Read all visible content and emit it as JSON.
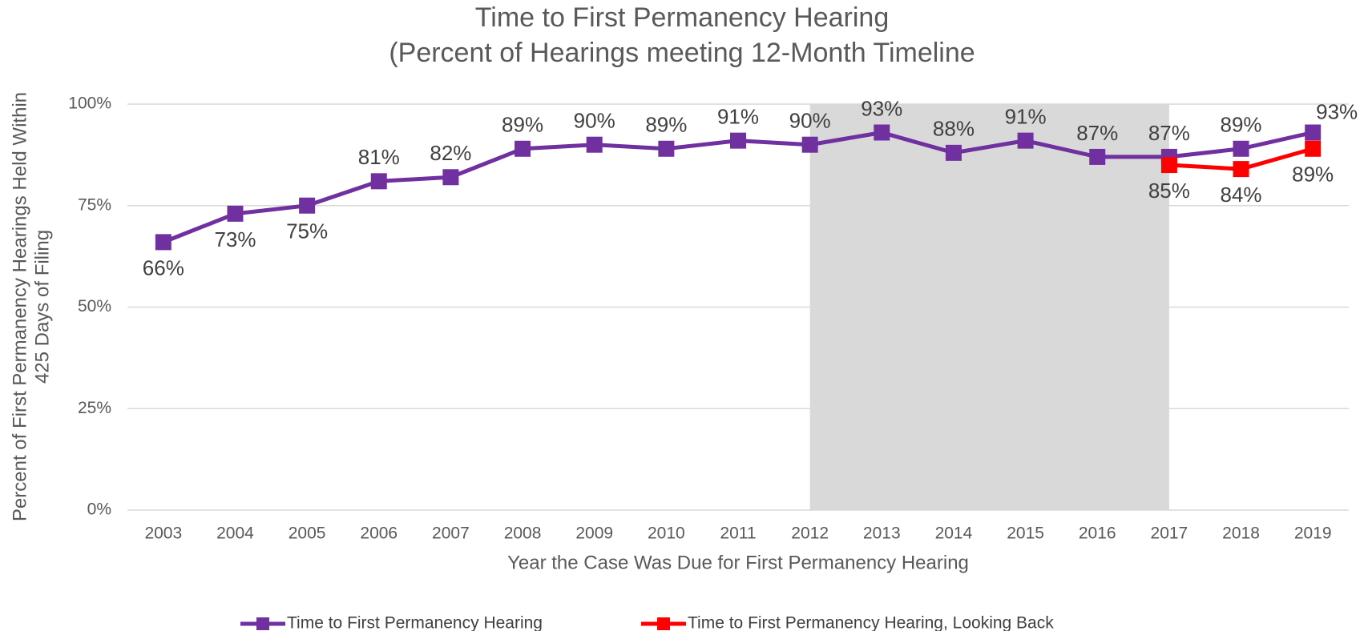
{
  "chart_data": {
    "type": "line",
    "title": "Time to First Permanency Hearing",
    "subtitle": "(Percent of Hearings meeting 12-Month Timeline",
    "x_label": "Year the Case Was Due for First Permanency Hearing",
    "y_label": [
      "Percent of First Permanency Hearings Held Within",
      "425 Days of Filing"
    ],
    "categories": [
      "2003",
      "2004",
      "2005",
      "2006",
      "2007",
      "2008",
      "2009",
      "2010",
      "2011",
      "2012",
      "2013",
      "2014",
      "2015",
      "2016",
      "2017",
      "2018",
      "2019"
    ],
    "highlight_range": [
      "2012",
      "2017"
    ],
    "series": [
      {
        "name": "Time to First Permanency Hearing",
        "color": "#7030a0",
        "values": [
          66,
          73,
          75,
          81,
          82,
          89,
          90,
          89,
          91,
          90,
          93,
          88,
          91,
          87,
          87,
          89,
          93
        ],
        "value_labels": [
          "66%",
          "73%",
          "75%",
          "81%",
          "82%",
          "89%",
          "90%",
          "89%",
          "91%",
          "90%",
          "93%",
          "88%",
          "91%",
          "87%",
          "87%",
          "89%",
          "93%"
        ]
      },
      {
        "name": "Time to First Permanency Hearing, Looking Back",
        "color": "#ff0000",
        "values": [
          null,
          null,
          null,
          null,
          null,
          null,
          null,
          null,
          null,
          null,
          null,
          null,
          null,
          null,
          85,
          84,
          89
        ],
        "value_labels": [
          null,
          null,
          null,
          null,
          null,
          null,
          null,
          null,
          null,
          null,
          null,
          null,
          null,
          null,
          "85%",
          "84%",
          "89%"
        ]
      }
    ],
    "ylim": [
      0,
      100
    ],
    "yticks": [
      {
        "value": 0,
        "label": "0%"
      },
      {
        "value": 25,
        "label": "25%"
      },
      {
        "value": 50,
        "label": "50%"
      },
      {
        "value": 75,
        "label": "75%"
      },
      {
        "value": 100,
        "label": "100%"
      }
    ],
    "grid": true,
    "legend": "bottom"
  }
}
